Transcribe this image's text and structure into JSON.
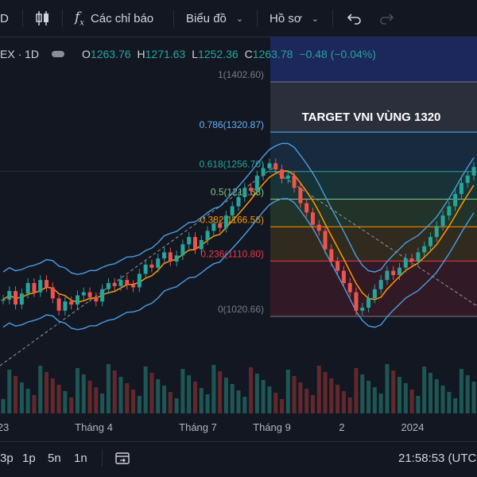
{
  "toolbar": {
    "interval_label": "D",
    "indicators_label": "Các chỉ báo",
    "chart_type_label": "Biểu đồ",
    "profile_label": "Hồ sơ"
  },
  "legend": {
    "symbol": "EX · 1D",
    "open_k": "O",
    "open_v": "1263.76",
    "high_k": "H",
    "high_v": "1271.63",
    "low_k": "L",
    "low_v": "1252.36",
    "close_k": "C",
    "close_v": "1263.78",
    "change_v": "−0.48 (−0.04%)"
  },
  "chart_data": {
    "type": "candlestick",
    "annotation": "TARGET VNI VÙNG 1320",
    "x_labels": [
      "23",
      "Tháng 4",
      "Tháng 7",
      "Tháng 9",
      "2",
      "2024"
    ],
    "fib_levels": [
      {
        "ratio": "1",
        "value": 1402.6,
        "label": "1(1402.60)",
        "color": "#787b86",
        "fill": "#3f4250"
      },
      {
        "ratio": "0.786",
        "value": 1320.87,
        "label": "0.786(1320.87)",
        "color": "#64b5f6",
        "fill": "#1b3a55"
      },
      {
        "ratio": "0.618",
        "value": 1256.7,
        "label": "0.618(1256.70)",
        "color": "#26a69a",
        "fill": "#1e4a48"
      },
      {
        "ratio": "0.5",
        "value": 1211.63,
        "label": "0.5(1211.63)",
        "color": "#81c784",
        "fill": "#2f4a2f"
      },
      {
        "ratio": "0.382",
        "value": 1166.56,
        "label": "0.382(1166.56)",
        "color": "#ff9800",
        "fill": "#4a3b1e"
      },
      {
        "ratio": "0.236",
        "value": 1110.8,
        "label": "0.236(1110.80)",
        "color": "#f23645",
        "fill": "#4a1e28"
      },
      {
        "ratio": "0",
        "value": 1020.66,
        "label": "0(1020.66)",
        "color": "#787b86"
      }
    ],
    "series": [
      {
        "values": [
          1048,
          1062,
          1040,
          1058,
          1075,
          1060,
          1080,
          1068,
          1050,
          1030,
          1045,
          1040,
          1055,
          1060,
          1052,
          1045,
          1065,
          1075,
          1070,
          1080,
          1072,
          1068,
          1090,
          1105,
          1100,
          1115,
          1125,
          1110,
          1120,
          1138,
          1150,
          1130,
          1145,
          1160,
          1172,
          1165,
          1185,
          1200,
          1215,
          1230,
          1225,
          1250,
          1262,
          1270,
          1260,
          1245,
          1250,
          1230,
          1205,
          1190,
          1170,
          1160,
          1130,
          1110,
          1095,
          1075,
          1060,
          1030,
          1035,
          1050,
          1065,
          1080,
          1095,
          1088,
          1100,
          1115,
          1110,
          1125,
          1135,
          1150,
          1168,
          1185,
          1200,
          1220,
          1238,
          1250,
          1264
        ]
      }
    ]
  }
}
